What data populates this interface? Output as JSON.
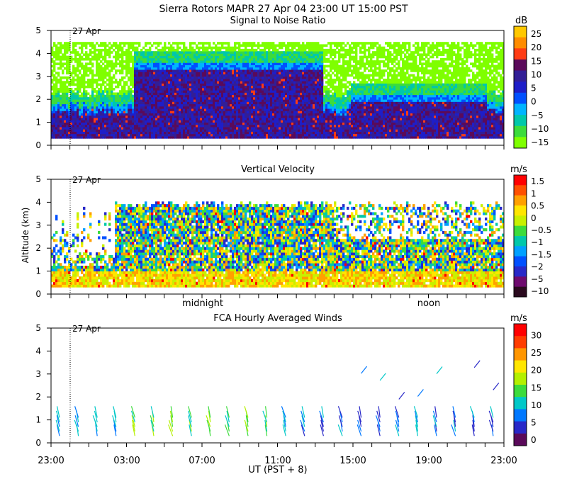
{
  "header": {
    "title": "Sierra Rotors   MAPR 27 Apr 04   23:00 UT   15:00   PST"
  },
  "colors": {
    "snr_scale": [
      "#7fff00",
      "#3cdc3c",
      "#00c8aa",
      "#00b4ff",
      "#0050ff",
      "#1e1ec8",
      "#321e96",
      "#5a0a5a",
      "#ff3c14",
      "#ff8c00",
      "#ffc800"
    ],
    "vel_scale": [
      "#2a0a1e",
      "#6e0a6e",
      "#2828c8",
      "#0050ff",
      "#00a0ff",
      "#00c8aa",
      "#3cdc3c",
      "#c8f000",
      "#ffe600",
      "#ffa000",
      "#ff5000",
      "#ff0000"
    ],
    "wind_scale": [
      "#5a0a5a",
      "#2828c8",
      "#0078ff",
      "#00c8c8",
      "#3cdc3c",
      "#b4f000",
      "#ffe600",
      "#ff9600",
      "#ff3c00",
      "#ff0000"
    ]
  },
  "chart_data": [
    {
      "type": "heatmap",
      "title": "Signal to Noise Ratio",
      "xlabel": "",
      "ylabel": "",
      "ylim": [
        0,
        5
      ],
      "yticks": [
        "0",
        "1",
        "2",
        "3",
        "4",
        "5"
      ],
      "date_marker": "27 Apr",
      "time_range_ut": [
        "23:00",
        "23:00"
      ],
      "units": "dB",
      "colorbar": [
        "25",
        "20",
        "15",
        "10",
        "5",
        "0",
        "−5",
        "−10",
        "−15"
      ],
      "description_values": {
        "echo_top_km": 4.5,
        "bottom_km": 0.3
      }
    },
    {
      "type": "heatmap",
      "title": "Vertical Velocity",
      "ylabel": "Altitude (km)",
      "ylim": [
        0,
        5
      ],
      "yticks": [
        "0",
        "1",
        "2",
        "3",
        "4",
        "5"
      ],
      "date_marker": "27 Apr",
      "units": "m/s",
      "colorbar": [
        "1.5",
        "1",
        "0.5",
        "0",
        "−0.5",
        "−1",
        "−1.5",
        "−2",
        "−5",
        "−10"
      ],
      "xlabels_inner": [
        "midnight",
        "noon"
      ]
    },
    {
      "type": "scatter",
      "title": "FCA Hourly Averaged Winds",
      "ylim": [
        0,
        5
      ],
      "yticks": [
        "0",
        "1",
        "2",
        "3",
        "4",
        "5"
      ],
      "date_marker": "27 Apr",
      "units": "m/s",
      "colorbar": [
        "30",
        "25",
        "20",
        "15",
        "10",
        "5",
        "0"
      ],
      "xlabel": "UT  (PST + 8)",
      "xticks": [
        "23:00",
        "03:00",
        "07:00",
        "11:00",
        "15:00",
        "19:00",
        "23:00"
      ]
    }
  ]
}
